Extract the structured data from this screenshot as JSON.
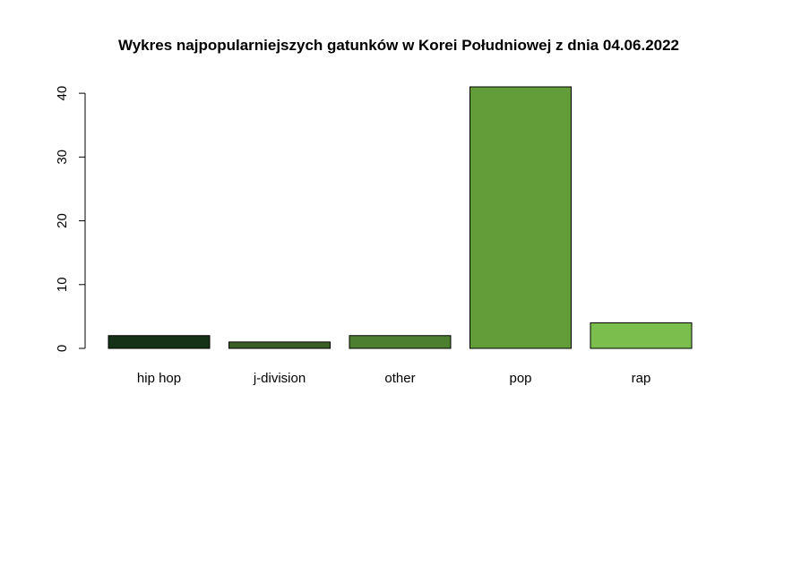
{
  "chart_data": {
    "type": "bar",
    "title": "Wykres najpopularniejszych gatunków w Korei Południowej z dnia 04.06.2022",
    "xlabel": "",
    "ylabel": "",
    "categories": [
      "hip hop",
      "j-division",
      "other",
      "pop",
      "rap"
    ],
    "values": [
      2,
      1,
      2,
      41,
      4
    ],
    "colors": [
      "#163216",
      "#3a5f26",
      "#4d7f31",
      "#629d3a",
      "#7bbe4d"
    ],
    "ylim": [
      0,
      41
    ],
    "yticks": [
      0,
      10,
      20,
      30,
      40
    ],
    "grid": false,
    "legend": "none"
  }
}
